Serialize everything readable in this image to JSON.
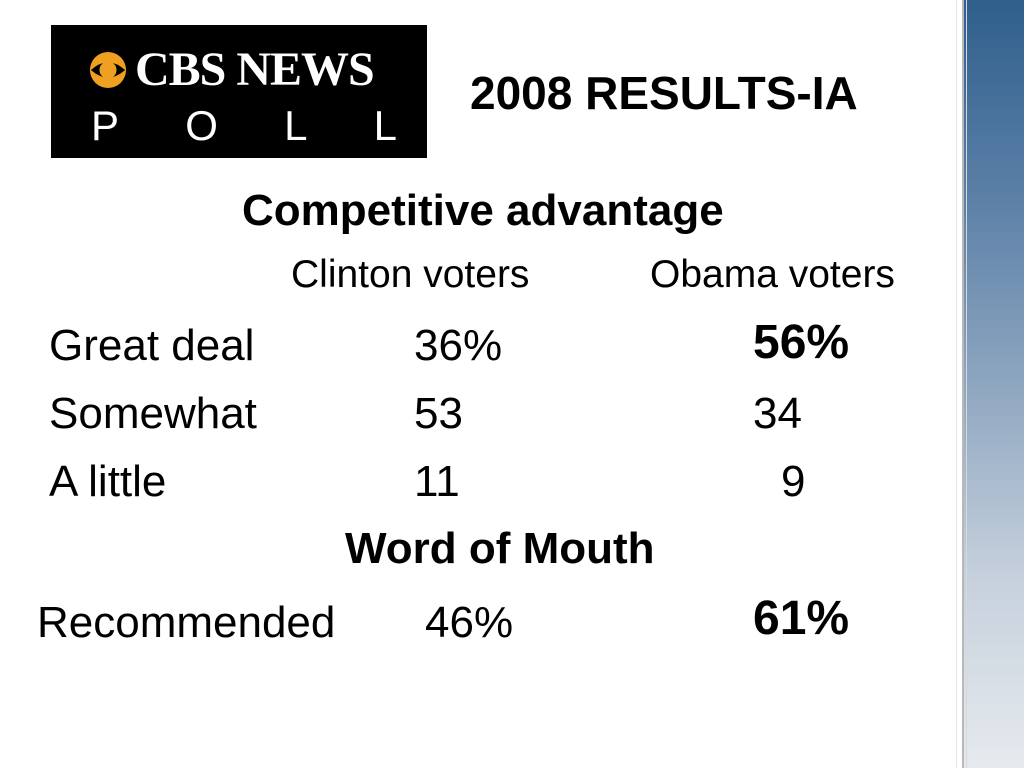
{
  "logo": {
    "brand": "CBS NEWS",
    "sub_letters": [
      "P",
      "O",
      "L",
      "L"
    ]
  },
  "title": "2008 RESULTS-IA",
  "section1": {
    "heading": "Competitive advantage",
    "columns": [
      "Clinton voters",
      "Obama voters"
    ],
    "rows": [
      {
        "label": "Great deal",
        "clinton": "36%",
        "obama": "56%"
      },
      {
        "label": "Somewhat",
        "clinton": "53",
        "obama": "34"
      },
      {
        "label": "A little",
        "clinton": "11",
        "obama": "9"
      }
    ]
  },
  "section2": {
    "heading": "Word of Mouth",
    "rows": [
      {
        "label": "Recommended",
        "clinton": "46%",
        "obama": "61%"
      }
    ]
  },
  "colors": {
    "logo_background": "#000000",
    "logo_eye": "#f0a020",
    "side_band_top": "#2f5f8c",
    "side_band_bottom": "#e6eaee"
  },
  "icons": {
    "logo_mark": "cbs-eye-icon"
  }
}
